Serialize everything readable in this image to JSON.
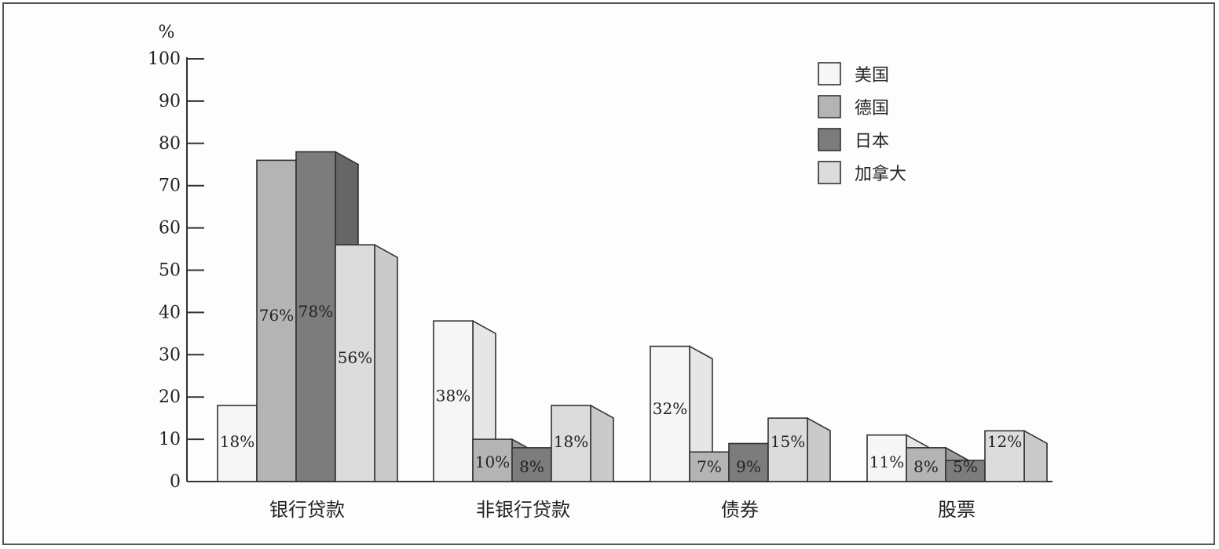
{
  "chart_data": {
    "type": "bar",
    "style": "3d-clustered",
    "y_unit_label": "%",
    "ylim": [
      0,
      100
    ],
    "yticks": [
      0,
      10,
      20,
      30,
      40,
      50,
      60,
      70,
      80,
      90,
      100
    ],
    "categories": [
      "银行贷款",
      "非银行贷款",
      "债券",
      "股票"
    ],
    "series": [
      {
        "name": "美国",
        "color": "#f6f6f6",
        "side_color": "#e6e6e6",
        "values": [
          18,
          38,
          32,
          11
        ],
        "labels": [
          "18%",
          "38%",
          "32%",
          "11%"
        ]
      },
      {
        "name": "德国",
        "color": "#b4b4b4",
        "side_color": "#9a9a9a",
        "values": [
          76,
          10,
          7,
          8
        ],
        "labels": [
          "76%",
          "10%",
          "7%",
          "8%"
        ]
      },
      {
        "name": "日本",
        "color": "#7c7c7c",
        "side_color": "#666666",
        "values": [
          78,
          8,
          9,
          5
        ],
        "labels": [
          "78%",
          "8%",
          "9%",
          "5%"
        ]
      },
      {
        "name": "加拿大",
        "color": "#dcdcdc",
        "side_color": "#cacaca",
        "values": [
          56,
          18,
          15,
          12
        ],
        "labels": [
          "56%",
          "18%",
          "15%",
          "12%"
        ]
      }
    ],
    "legend_position": "top-right",
    "grid": false
  }
}
